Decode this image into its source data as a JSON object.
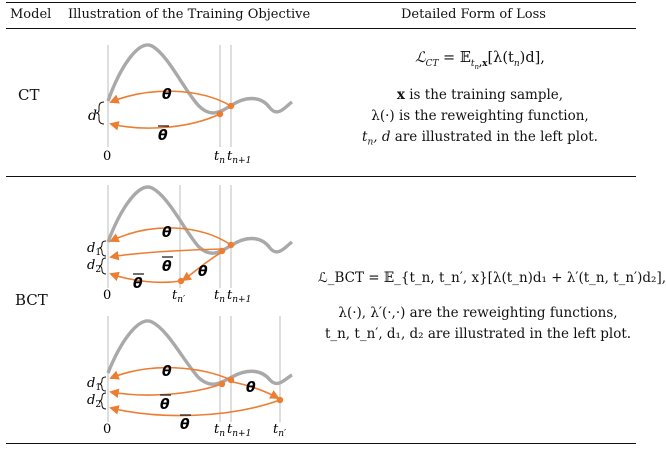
{
  "header": {
    "col_model": "Model",
    "col_illustration": "Illustration of the Training Objective",
    "col_loss": "Detailed Form of Loss"
  },
  "rows": {
    "ct": {
      "model": "CT",
      "d_label": "d",
      "theta": "θ",
      "theta_bar": "θ",
      "tick_zero": "0",
      "tick_tn": "t",
      "tick_tn_sub": "n",
      "tick_tn1": "t",
      "tick_tn1_sub": "n+1",
      "eq_lhs": "ℒ",
      "eq_lhs_sub": "CT",
      "eq_mid": " = 𝔼",
      "eq_mid_sub": "t",
      "eq_mid_sub2": "n",
      "eq_mid_sub3": ",x",
      "eq_rhs": "[λ(t",
      "eq_rhs_sub": "n",
      "eq_rhs_end": ")d],",
      "line1_x": "x",
      "line1_rest": " is the training sample,",
      "line2": "λ(·) is the reweighting function,",
      "line3_a": "t",
      "line3_a_sub": "n",
      "line3_b": ", d",
      "line3_c": " are illustrated in the left plot."
    },
    "bct": {
      "model": "BCT",
      "d1": "d",
      "d1_sub": "1",
      "d2": "d",
      "d2_sub": "2",
      "theta": "θ",
      "theta_bar": "θ",
      "tick_zero": "0",
      "tick_tn": "t",
      "tick_tn_sub": "n",
      "tick_tn1": "t",
      "tick_tn1_sub": "n+1",
      "tick_tnp": "t",
      "tick_tnp_sub": "n′",
      "eq": "ℒ_BCT = 𝔼_{t_n, t_n′, x}[λ(t_n)d₁ + λ′(t_n, t_n′)d₂],",
      "line1": "λ(·), λ′(·,·) are the reweighting functions,",
      "line2": "t_n, t_n′, d₁, d₂ are illustrated in the left plot."
    }
  },
  "colors": {
    "curve": "#a9a9a9",
    "arrow": "#ed7d31",
    "guide": "#bdbdbd",
    "rule": "#111111"
  }
}
